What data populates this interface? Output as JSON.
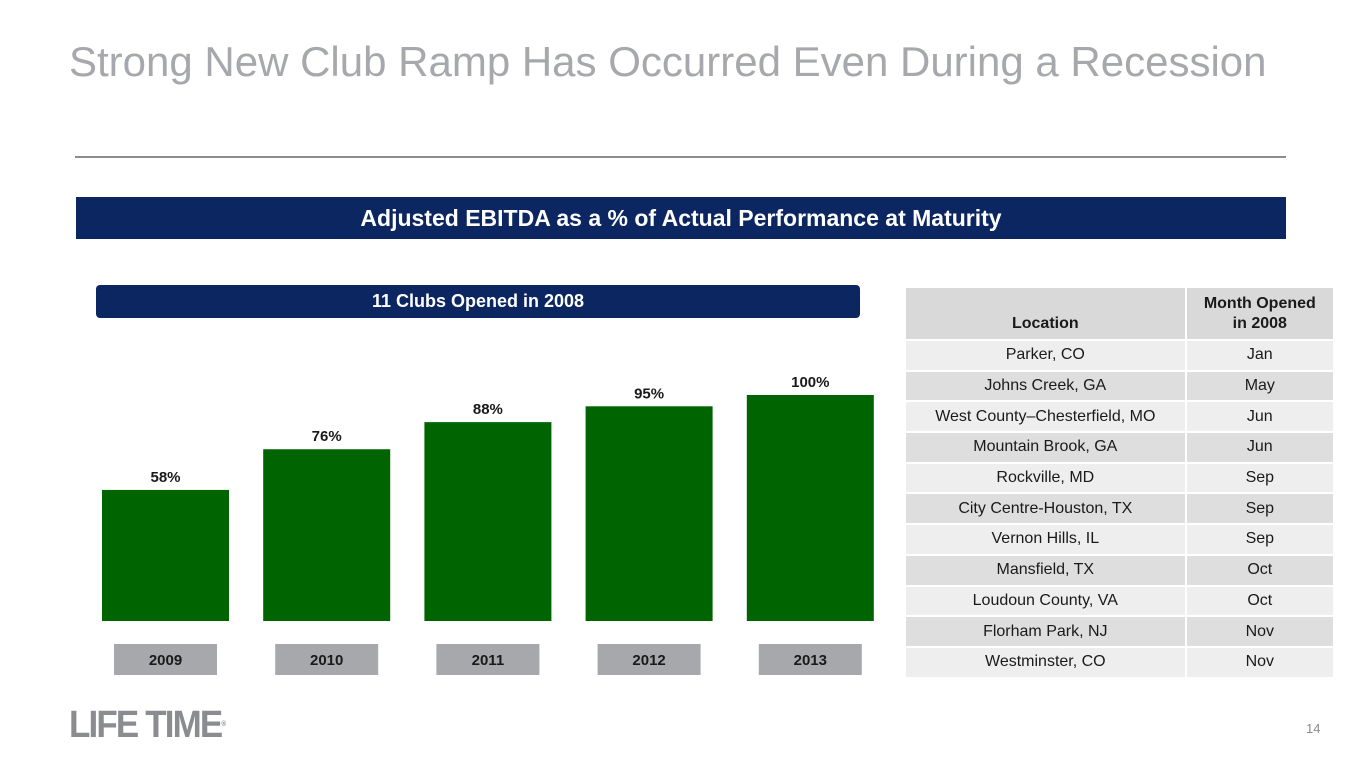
{
  "slide": {
    "title": "Strong New Club Ramp Has Occurred Even During a Recession",
    "banner": "Adjusted EBITDA as a % of Actual Performance at Maturity",
    "sub_banner": "11 Clubs Opened in 2008",
    "page_number": "14",
    "logo_text": "LIFE TIME",
    "logo_mark": "®"
  },
  "chart_data": {
    "type": "bar",
    "title": "11 Clubs Opened in 2008",
    "categories": [
      "2009",
      "2010",
      "2011",
      "2012",
      "2013"
    ],
    "values": [
      58,
      76,
      88,
      95,
      100
    ],
    "value_labels": [
      "58%",
      "76%",
      "88%",
      "95%",
      "100%"
    ],
    "ylim": [
      0,
      100
    ],
    "ylabel": "Adjusted EBITDA as a % of Actual Performance at Maturity",
    "grid": false,
    "legend": "none",
    "colors": {
      "bar": "#006400",
      "category_box": "#a6a8ab"
    }
  },
  "table": {
    "headers": [
      "Location",
      "Month Opened in 2008"
    ],
    "header_lines": [
      "Month Opened",
      "in 2008"
    ],
    "rows": [
      [
        "Parker, CO",
        "Jan"
      ],
      [
        "Johns Creek, GA",
        "May"
      ],
      [
        "West County–Chesterfield, MO",
        "Jun"
      ],
      [
        "Mountain Brook, GA",
        "Jun"
      ],
      [
        "Rockville, MD",
        "Sep"
      ],
      [
        "City Centre-Houston, TX",
        "Sep"
      ],
      [
        "Vernon Hills, IL",
        "Sep"
      ],
      [
        "Mansfield, TX",
        "Oct"
      ],
      [
        "Loudoun County, VA",
        "Oct"
      ],
      [
        "Florham Park, NJ",
        "Nov"
      ],
      [
        "Westminster, CO",
        "Nov"
      ]
    ]
  },
  "colors": {
    "navy": "#0b2660",
    "title_gray": "#a6a8ab"
  }
}
